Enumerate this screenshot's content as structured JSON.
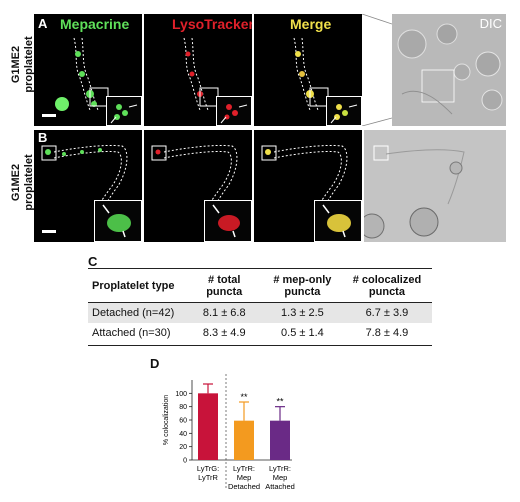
{
  "panels": {
    "A": {
      "letter": "A",
      "row_label": "G1ME2\nproplatelet",
      "channels": [
        "Mepacrine",
        "LysoTracker",
        "Merge"
      ],
      "dic_label": "DIC"
    },
    "B": {
      "letter": "B",
      "row_label": "G1ME2\nproplatelet"
    },
    "C": {
      "letter": "C",
      "headers": [
        "Proplatelet type",
        "# total puncta",
        "# mep-only puncta",
        "# colocalized puncta"
      ],
      "rows": [
        [
          "Detached (n=42)",
          "8.1 ± 6.8",
          "1.3 ± 2.5",
          "6.7 ± 3.9"
        ],
        [
          "Attached (n=30)",
          "8.3 ± 4.9",
          "0.5 ± 1.4",
          "7.8 ± 4.9"
        ]
      ]
    },
    "D": {
      "letter": "D"
    }
  },
  "colors": {
    "mepacrine": "#5fe05a",
    "lysotracker": "#e0202a",
    "merge": "#f0e04a",
    "bar_red": "#c8133a",
    "bar_orange": "#f39a1f",
    "bar_purple": "#6a2a86"
  },
  "chart_data": {
    "type": "bar",
    "categories": [
      "LyTrG:\nLyTrR",
      "LyTrR:\nMep\nDetached",
      "LyTrR:\nMep\nAttached"
    ],
    "values": [
      100,
      59,
      59
    ],
    "errors": [
      14,
      28,
      21
    ],
    "significance": [
      "",
      "**",
      "**"
    ],
    "ylabel": "% colocalization",
    "yticks": [
      0,
      20,
      40,
      60,
      80,
      100
    ],
    "ylim": [
      0,
      120
    ]
  }
}
